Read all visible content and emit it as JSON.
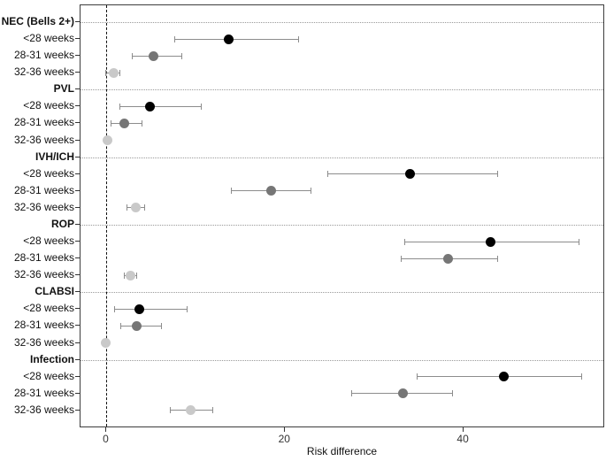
{
  "chart_data": {
    "type": "scatter",
    "subtype": "forest-plot-dot-with-ci",
    "title": "",
    "x_axis": {
      "label": "Risk difference",
      "ticks": [
        0,
        20,
        40
      ],
      "range": [
        -2.9,
        55.8
      ]
    },
    "zero_line": 0,
    "grid": "dotted separator line at each outcome group header; dashed vertical reference line at 0",
    "legend_position": "none",
    "colors": {
      "black": "#000000",
      "dark-gray": "#767676",
      "light-gray": "#c9c9c9",
      "ci_bar": "#8c8c8c"
    },
    "groups": [
      {
        "label": "NEC (Bells 2+)",
        "rows": [
          {
            "label": "<28 weeks",
            "estimate": 13.7,
            "ci_low": 7.6,
            "ci_high": 21.5,
            "shade": "black"
          },
          {
            "label": "28-31 weeks",
            "estimate": 5.3,
            "ci_low": 2.9,
            "ci_high": 8.4,
            "shade": "dark-gray"
          },
          {
            "label": "32-36 weeks",
            "estimate": 0.8,
            "ci_low": -0.1,
            "ci_high": 1.5,
            "shade": "light-gray"
          }
        ]
      },
      {
        "label": "PVL",
        "rows": [
          {
            "label": "<28 weeks",
            "estimate": 4.9,
            "ci_low": 1.5,
            "ci_high": 10.6,
            "shade": "black"
          },
          {
            "label": "28-31 weeks",
            "estimate": 2.0,
            "ci_low": 0.5,
            "ci_high": 4.0,
            "shade": "dark-gray"
          },
          {
            "label": "32-36 weeks",
            "estimate": 0.1,
            "ci_low": -0.2,
            "ci_high": 0.4,
            "shade": "light-gray"
          }
        ]
      },
      {
        "label": "IVH/ICH",
        "rows": [
          {
            "label": "<28 weeks",
            "estimate": 34.0,
            "ci_low": 24.8,
            "ci_high": 43.8,
            "shade": "black"
          },
          {
            "label": "28-31 weeks",
            "estimate": 18.4,
            "ci_low": 14.0,
            "ci_high": 22.9,
            "shade": "dark-gray"
          },
          {
            "label": "32-36 weeks",
            "estimate": 3.3,
            "ci_low": 2.3,
            "ci_high": 4.3,
            "shade": "light-gray"
          }
        ]
      },
      {
        "label": "ROP",
        "rows": [
          {
            "label": "<28 weeks",
            "estimate": 43.0,
            "ci_low": 33.4,
            "ci_high": 52.9,
            "shade": "black"
          },
          {
            "label": "28-31 weeks",
            "estimate": 38.3,
            "ci_low": 33.0,
            "ci_high": 43.8,
            "shade": "dark-gray"
          },
          {
            "label": "32-36 weeks",
            "estimate": 2.7,
            "ci_low": 2.0,
            "ci_high": 3.4,
            "shade": "light-gray"
          }
        ]
      },
      {
        "label": "CLABSI",
        "rows": [
          {
            "label": "<28 weeks",
            "estimate": 3.7,
            "ci_low": 0.9,
            "ci_high": 9.0,
            "shade": "black"
          },
          {
            "label": "28-31 weeks",
            "estimate": 3.4,
            "ci_low": 1.6,
            "ci_high": 6.1,
            "shade": "dark-gray"
          },
          {
            "label": "32-36 weeks",
            "estimate": -0.1,
            "ci_low": -0.3,
            "ci_high": 0.1,
            "shade": "light-gray"
          }
        ]
      },
      {
        "label": "Infection",
        "rows": [
          {
            "label": "<28 weeks",
            "estimate": 44.5,
            "ci_low": 34.8,
            "ci_high": 53.2,
            "shade": "black"
          },
          {
            "label": "28-31 weeks",
            "estimate": 33.2,
            "ci_low": 27.5,
            "ci_high": 38.8,
            "shade": "dark-gray"
          },
          {
            "label": "32-36 weeks",
            "estimate": 9.4,
            "ci_low": 7.1,
            "ci_high": 11.9,
            "shade": "light-gray"
          }
        ]
      }
    ]
  }
}
